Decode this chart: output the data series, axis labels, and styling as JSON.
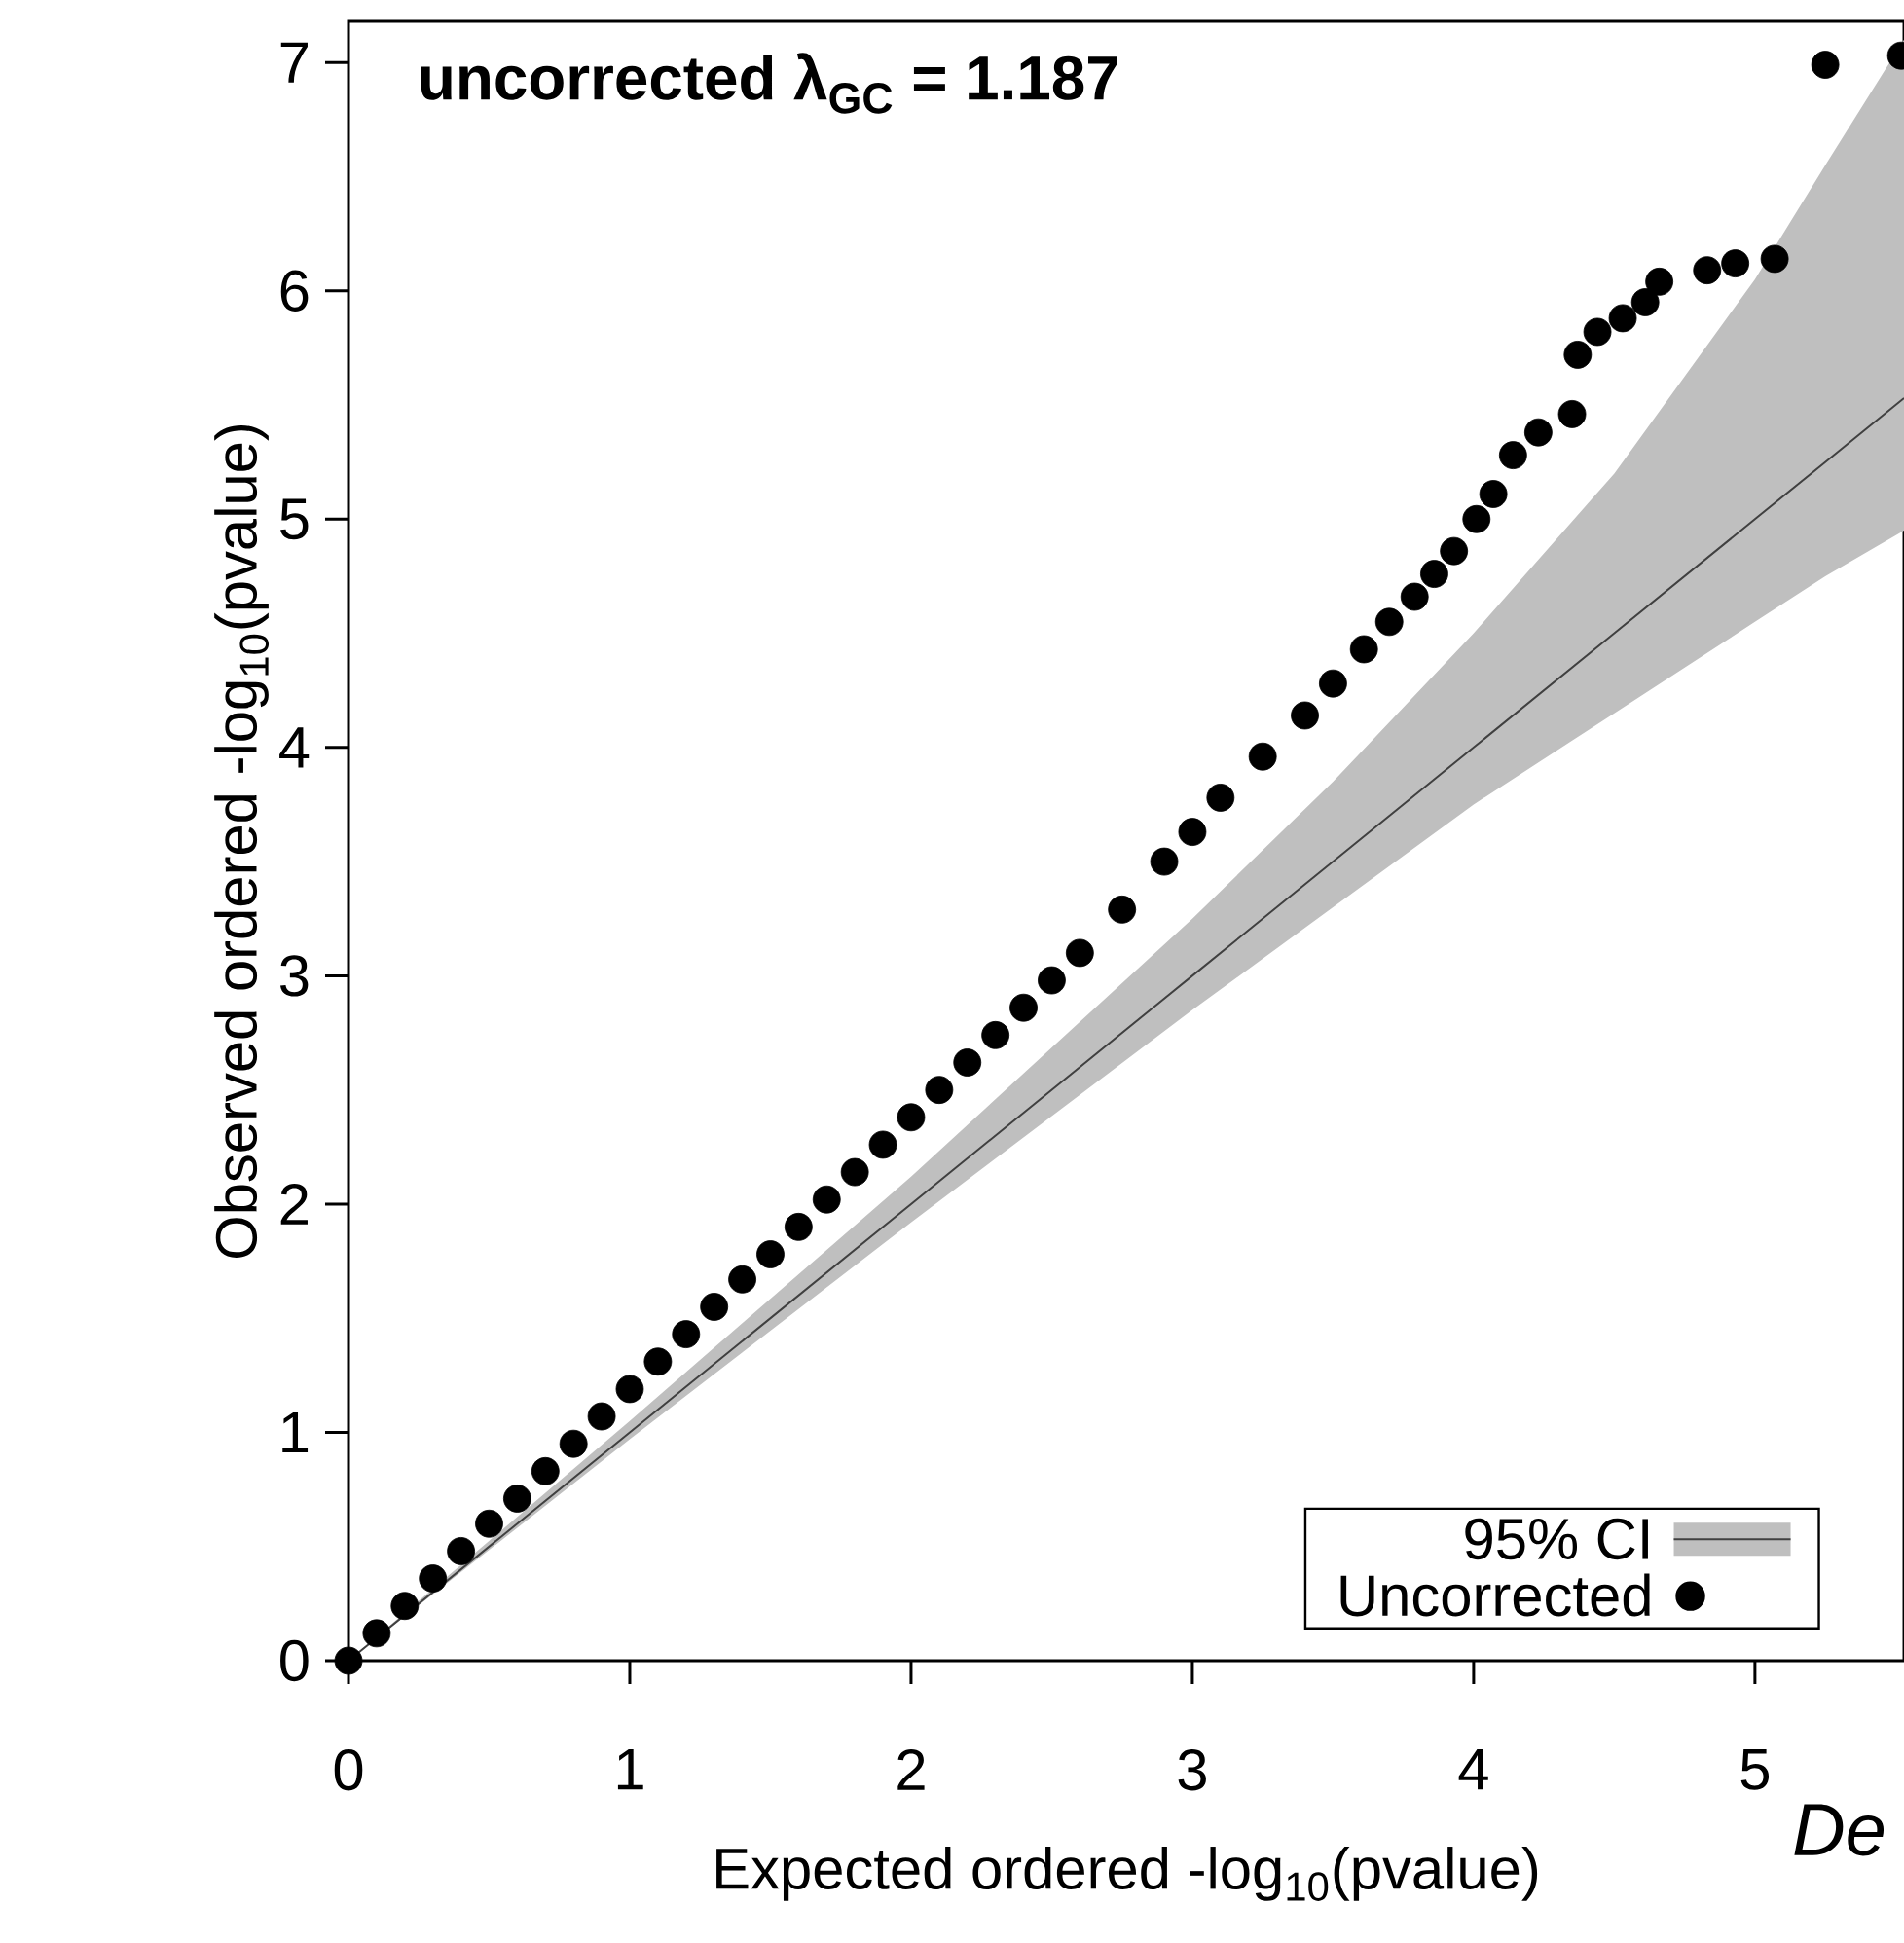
{
  "chart_data": {
    "type": "scatter",
    "xlabel": "Expected ordered -log$_{10}$(pvalue)",
    "ylabel": "Observed ordered -log$_{10}$(pvalue)",
    "annotations": [
      "uncorrected λ$_{GC}$ = 1.187",
      "*De*"
    ],
    "xlim": [
      0,
      5.53
    ],
    "ylim": [
      0,
      7.18
    ],
    "xticks": [
      0,
      1,
      2,
      3,
      4,
      5
    ],
    "yticks": [
      0,
      1,
      2,
      3,
      4,
      5,
      6,
      7
    ],
    "legend": "bottom right",
    "series": [
      {
        "type": "line",
        "name": "95% CI",
        "color": "#404040",
        "x": [
          0,
          1,
          2,
          3,
          3.5,
          4,
          4.5,
          5,
          5.25,
          5.53
        ],
        "values": [
          0,
          1,
          2,
          3,
          3.5,
          4,
          4.5,
          5,
          5.25,
          5.53
        ],
        "lower": [
          0,
          0.97,
          1.92,
          2.85,
          3.3,
          3.75,
          4.15,
          4.55,
          4.75,
          4.95
        ],
        "upper": [
          0,
          1.05,
          2.12,
          3.25,
          3.85,
          4.5,
          5.2,
          6.05,
          6.55,
          7.1
        ]
      },
      {
        "name": "Uncorrected",
        "color": "#000000",
        "marker": "circle",
        "x": [
          0,
          0.1,
          0.2,
          0.3,
          0.4,
          0.5,
          0.6,
          0.7,
          0.8,
          0.9,
          1.0,
          1.1,
          1.2,
          1.3,
          1.4,
          1.5,
          1.6,
          1.7,
          1.8,
          1.9,
          2.0,
          2.1,
          2.2,
          2.3,
          2.4,
          2.5,
          2.6,
          2.75,
          2.9,
          3.0,
          3.1,
          3.25,
          3.4,
          3.5,
          3.61,
          3.7,
          3.79,
          3.86,
          3.93,
          4.01,
          4.07,
          4.14,
          4.23,
          4.35,
          4.37,
          4.44,
          4.53,
          4.61,
          4.66,
          4.83,
          4.93,
          5.07,
          5.25,
          5.52
        ],
        "values": [
          0,
          0.12,
          0.24,
          0.36,
          0.48,
          0.6,
          0.71,
          0.83,
          0.95,
          1.07,
          1.19,
          1.31,
          1.43,
          1.55,
          1.67,
          1.78,
          1.9,
          2.02,
          2.14,
          2.26,
          2.38,
          2.5,
          2.62,
          2.74,
          2.86,
          2.98,
          3.1,
          3.29,
          3.5,
          3.63,
          3.78,
          3.96,
          4.14,
          4.28,
          4.43,
          4.55,
          4.66,
          4.76,
          4.86,
          5.0,
          5.11,
          5.28,
          5.38,
          5.46,
          5.72,
          5.82,
          5.88,
          5.95,
          6.04,
          6.09,
          6.12,
          6.14,
          6.99,
          7.03
        ]
      }
    ]
  }
}
